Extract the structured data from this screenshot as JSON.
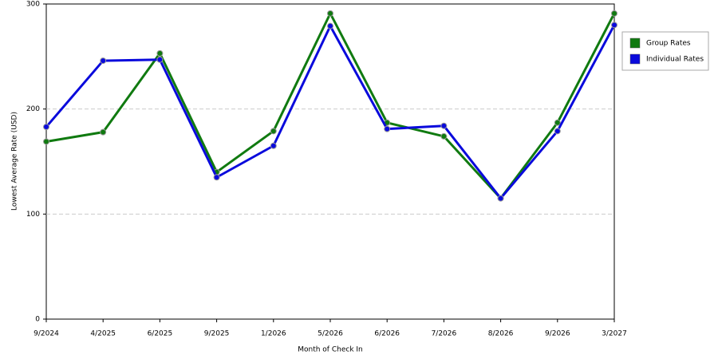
{
  "chart_data": {
    "type": "line",
    "x_label": "Month of Check In",
    "y_label": "Lowest Average Rate (USD)",
    "categories": [
      "9/2024",
      "4/2025",
      "6/2025",
      "9/2025",
      "1/2026",
      "5/2026",
      "6/2026",
      "7/2026",
      "8/2026",
      "9/2026",
      "3/2027"
    ],
    "series": [
      {
        "name": "Group Rates",
        "color": "#107a10",
        "values": [
          169,
          178,
          253,
          140,
          179,
          291,
          187,
          174,
          115,
          187,
          291
        ]
      },
      {
        "name": "Individual Rates",
        "color": "#0a0adc",
        "values": [
          183,
          246,
          247,
          135,
          165,
          279,
          181,
          184,
          115,
          179,
          280
        ]
      }
    ],
    "ylim": [
      0,
      300
    ],
    "yticks": [
      0,
      100,
      200,
      300
    ],
    "grid": true,
    "legend": "right"
  }
}
